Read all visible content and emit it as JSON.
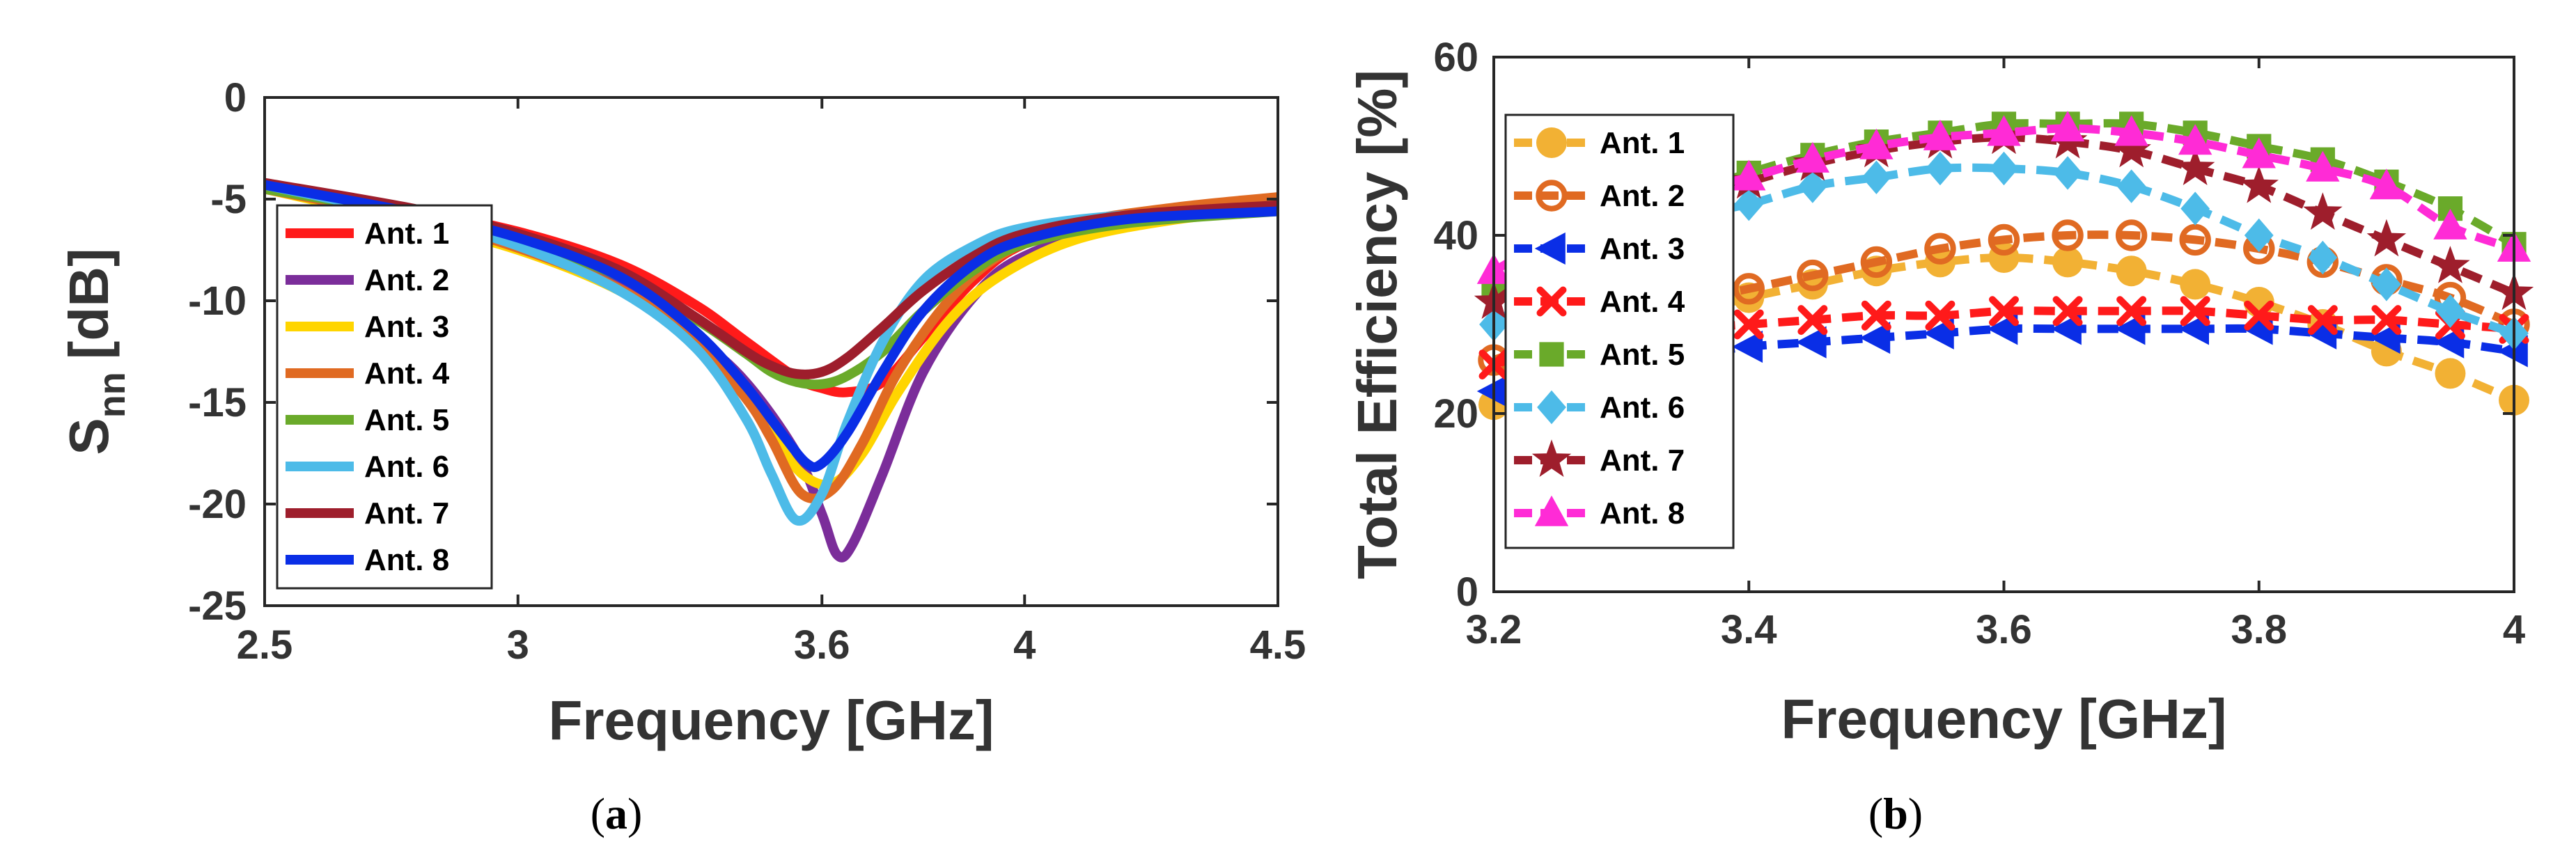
{
  "chart_data": [
    {
      "type": "line",
      "panel_label": "a",
      "xlabel": "Frequency [GHz]",
      "ylabel": "S",
      "ylabel_sub": "nn",
      "ylabel_unit": "[dB]",
      "xlim": [
        2.5,
        4.5
      ],
      "ylim": [
        -25,
        0
      ],
      "xticks": [
        2.5,
        3,
        3.6,
        4,
        4.5
      ],
      "xtick_labels": [
        "2.5",
        "3",
        "3.6",
        "4",
        "4.5"
      ],
      "yticks": [
        0,
        -5,
        -10,
        -15,
        -20,
        -25
      ],
      "ytick_labels": [
        "0",
        "-5",
        "-10",
        "-15",
        "-20",
        "-25"
      ],
      "grid": false,
      "legend": "left",
      "series": [
        {
          "name": "Ant. 1",
          "color": "#ff1a1a",
          "x": [
            2.5,
            2.8,
            3.0,
            3.2,
            3.35,
            3.45,
            3.55,
            3.6,
            3.65,
            3.72,
            3.8,
            3.9,
            4.0,
            4.2,
            4.5
          ],
          "y": [
            -4.5,
            -5.6,
            -6.6,
            -8.2,
            -10.2,
            -12.0,
            -13.8,
            -14.3,
            -14.5,
            -14.0,
            -11.8,
            -9.0,
            -7.2,
            -5.8,
            -5.0
          ]
        },
        {
          "name": "Ant. 2",
          "color": "#7b2d9a",
          "x": [
            2.5,
            2.8,
            3.0,
            3.2,
            3.35,
            3.45,
            3.55,
            3.6,
            3.63,
            3.66,
            3.72,
            3.8,
            3.9,
            4.0,
            4.2,
            4.5
          ],
          "y": [
            -4.5,
            -6.0,
            -7.3,
            -9.3,
            -11.8,
            -14.0,
            -17.5,
            -20.5,
            -22.5,
            -22.0,
            -18.5,
            -13.5,
            -9.8,
            -7.8,
            -6.3,
            -5.5
          ]
        },
        {
          "name": "Ant. 3",
          "color": "#ffd500",
          "x": [
            2.5,
            2.8,
            3.0,
            3.2,
            3.35,
            3.45,
            3.5,
            3.56,
            3.62,
            3.68,
            3.75,
            3.85,
            3.95,
            4.1,
            4.3,
            4.5
          ],
          "y": [
            -4.5,
            -6.2,
            -7.5,
            -9.5,
            -12.0,
            -14.5,
            -16.5,
            -18.5,
            -19.0,
            -17.5,
            -14.5,
            -11.0,
            -8.8,
            -7.0,
            -6.0,
            -5.5
          ]
        },
        {
          "name": "Ant. 4",
          "color": "#e06a22",
          "x": [
            2.5,
            2.8,
            3.0,
            3.2,
            3.35,
            3.45,
            3.5,
            3.56,
            3.62,
            3.68,
            3.75,
            3.85,
            3.95,
            4.1,
            4.3,
            4.5
          ],
          "y": [
            -4.5,
            -6.0,
            -7.4,
            -9.4,
            -12.0,
            -14.8,
            -16.8,
            -19.5,
            -19.3,
            -17.0,
            -13.5,
            -10.0,
            -7.8,
            -6.2,
            -5.4,
            -4.9
          ]
        },
        {
          "name": "Ant. 5",
          "color": "#6aaa2a",
          "x": [
            2.5,
            2.8,
            3.0,
            3.2,
            3.35,
            3.45,
            3.5,
            3.55,
            3.6,
            3.65,
            3.72,
            3.8,
            3.9,
            4.0,
            4.2,
            4.5
          ],
          "y": [
            -4.5,
            -5.8,
            -7.0,
            -8.8,
            -10.9,
            -12.6,
            -13.5,
            -14.0,
            -14.1,
            -13.7,
            -12.5,
            -10.5,
            -8.5,
            -7.2,
            -6.2,
            -5.6
          ]
        },
        {
          "name": "Ant. 6",
          "color": "#4dbbe8",
          "x": [
            2.5,
            2.8,
            3.0,
            3.2,
            3.35,
            3.45,
            3.5,
            3.55,
            3.6,
            3.65,
            3.72,
            3.8,
            3.9,
            4.0,
            4.2,
            4.5
          ],
          "y": [
            -4.3,
            -5.9,
            -7.3,
            -9.5,
            -12.3,
            -15.8,
            -18.5,
            -20.8,
            -19.5,
            -16.0,
            -12.0,
            -9.0,
            -7.3,
            -6.4,
            -5.8,
            -5.6
          ]
        },
        {
          "name": "Ant. 7",
          "color": "#9e1e2c",
          "x": [
            2.5,
            2.8,
            3.0,
            3.2,
            3.35,
            3.45,
            3.5,
            3.55,
            3.6,
            3.65,
            3.72,
            3.8,
            3.9,
            4.0,
            4.2,
            4.5
          ],
          "y": [
            -4.2,
            -5.5,
            -6.7,
            -8.5,
            -10.8,
            -12.5,
            -13.2,
            -13.6,
            -13.5,
            -12.8,
            -11.3,
            -9.5,
            -7.8,
            -6.7,
            -5.8,
            -5.3
          ]
        },
        {
          "name": "Ant. 8",
          "color": "#0a2ee6",
          "x": [
            2.5,
            2.8,
            3.0,
            3.2,
            3.35,
            3.45,
            3.52,
            3.57,
            3.6,
            3.65,
            3.72,
            3.8,
            3.9,
            4.0,
            4.2,
            4.5
          ],
          "y": [
            -4.3,
            -5.7,
            -6.9,
            -8.8,
            -11.5,
            -14.2,
            -16.5,
            -18.0,
            -18.0,
            -16.5,
            -13.5,
            -10.5,
            -8.2,
            -7.0,
            -6.0,
            -5.6
          ]
        }
      ]
    },
    {
      "type": "line",
      "panel_label": "b",
      "xlabel": "Frequency [GHz]",
      "ylabel": "Total Efficiency [%]",
      "xlim": [
        3.2,
        4.0
      ],
      "ylim": [
        0,
        60
      ],
      "xticks": [
        3.2,
        3.4,
        3.6,
        3.8,
        4.0
      ],
      "xtick_labels": [
        "3.2",
        "3.4",
        "3.6",
        "3.8",
        "4"
      ],
      "yticks": [
        60,
        40,
        20,
        0
      ],
      "ytick_labels": [
        "60",
        "40",
        "20",
        "0"
      ],
      "grid": false,
      "legend": "left",
      "x": [
        3.2,
        3.25,
        3.3,
        3.35,
        3.4,
        3.45,
        3.5,
        3.55,
        3.6,
        3.65,
        3.7,
        3.75,
        3.8,
        3.85,
        3.9,
        3.95,
        4.0
      ],
      "series": [
        {
          "name": "Ant. 1",
          "color": "#f2b134",
          "marker": "circle",
          "values": [
            21,
            25,
            28,
            31,
            33,
            34.5,
            36,
            37,
            37.5,
            37,
            36,
            34.5,
            32.5,
            30,
            27,
            24.5,
            21.5
          ]
        },
        {
          "name": "Ant. 2",
          "color": "#e06a22",
          "marker": "circle-open",
          "values": [
            26,
            28.5,
            30.5,
            32.5,
            34,
            35.5,
            37,
            38.5,
            39.5,
            40,
            40,
            39.5,
            38.5,
            37,
            35,
            33,
            30
          ]
        },
        {
          "name": "Ant. 3",
          "color": "#0a2ee6",
          "marker": "triangle-left",
          "values": [
            22.5,
            24.5,
            25.5,
            26.5,
            27.5,
            28,
            28.5,
            29,
            29.5,
            29.5,
            29.5,
            29.5,
            29.5,
            29,
            28.5,
            28,
            27
          ]
        },
        {
          "name": "Ant. 4",
          "color": "#ff1a1a",
          "marker": "x",
          "values": [
            25.5,
            27.5,
            28.5,
            29.5,
            30,
            30.5,
            31,
            31,
            31.5,
            31.5,
            31.5,
            31.5,
            31,
            30.5,
            30.5,
            30,
            29.5
          ]
        },
        {
          "name": "Ant. 5",
          "color": "#6aaa2a",
          "marker": "square",
          "values": [
            34,
            38,
            41.5,
            44.5,
            47,
            49,
            50.5,
            51.5,
            52.5,
            52.5,
            52.5,
            51.5,
            50,
            48.5,
            46,
            43,
            39
          ]
        },
        {
          "name": "Ant. 6",
          "color": "#4dbbe8",
          "marker": "diamond",
          "values": [
            30,
            35,
            39,
            42,
            43.5,
            45.5,
            46.5,
            47.5,
            47.5,
            47,
            45.5,
            43,
            40,
            37.5,
            34.5,
            31.5,
            29
          ]
        },
        {
          "name": "Ant. 7",
          "color": "#9e1e2c",
          "marker": "star",
          "values": [
            32.5,
            37.5,
            41.5,
            44,
            46,
            48,
            49.5,
            50.5,
            51,
            50.5,
            49.5,
            47.5,
            45.5,
            42.5,
            39.5,
            36.5,
            33.5
          ]
        },
        {
          "name": "Ant. 8",
          "color": "#ff2bd6",
          "marker": "triangle-up",
          "values": [
            36,
            40,
            43,
            45,
            46.5,
            48.5,
            50,
            51,
            51.5,
            52,
            51.5,
            50.5,
            49,
            47.5,
            45.5,
            41,
            38.5
          ]
        }
      ]
    }
  ]
}
